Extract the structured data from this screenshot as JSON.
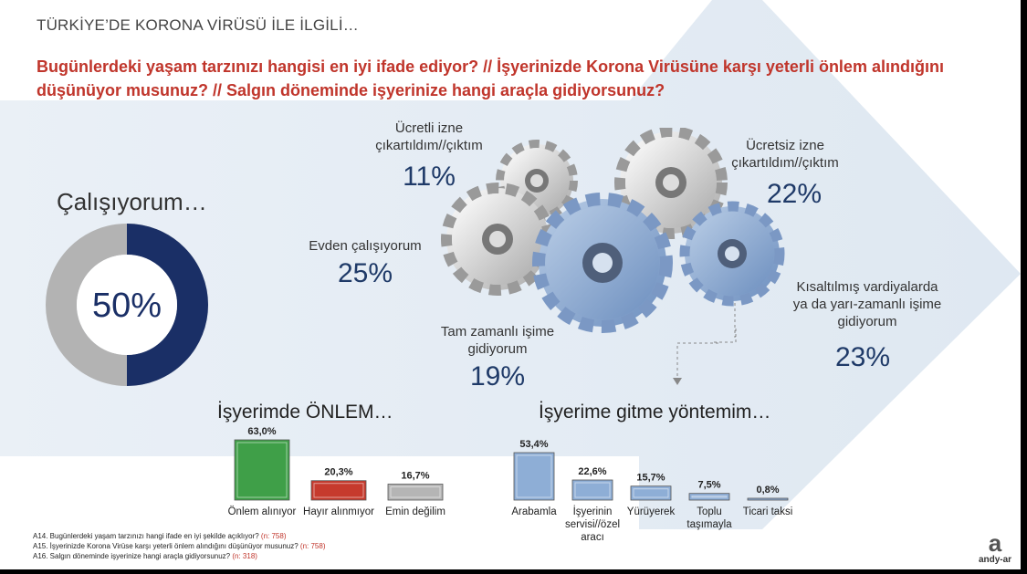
{
  "supertitle": "TÜRKİYE’DE KORONA VİRÜSÜ İLE İLGİLİ…",
  "question": "Bugünlerdeki yaşam tarzınızı hangisi en iyi ifade ediyor? // İşyerinizde Korona Virüsüne karşı yeterli önlem alındığını düşünüyor musunuz? // Salgın döneminde işyerinize hangi araçla gidiyorsunuz?",
  "working": {
    "title": "Çalışıyorum…",
    "value_label": "50%",
    "value": 50,
    "colors": {
      "filled": "#1a2f66",
      "rest": "#b3b3b3"
    }
  },
  "gears": [
    {
      "label_lines": [
        "Ücretli izne",
        "çıkartıldım//çıktım"
      ],
      "pct": "11%"
    },
    {
      "label_lines": [
        "Ücretsiz izne",
        "çıkartıldım//çıktım"
      ],
      "pct": "22%"
    },
    {
      "label_lines": [
        "Evden çalışıyorum"
      ],
      "pct": "25%"
    },
    {
      "label_lines": [
        "Kısaltılmış vardiyalarda",
        "ya da yarı-zamanlı işime",
        "gidiyorum"
      ],
      "pct": "23%"
    },
    {
      "label_lines": [
        "Tam zamanlı işime",
        "gidiyorum"
      ],
      "pct": "19%"
    }
  ],
  "chart_data": [
    {
      "type": "bar",
      "title": "İşyerimde ÖNLEM…",
      "categories": [
        "Önlem alınıyor",
        "Hayır alınmıyor",
        "Emin değilim"
      ],
      "category_lines": [
        [
          "Önlem alınıyor"
        ],
        [
          "Hayır alınmıyor"
        ],
        [
          "Emin değilim"
        ]
      ],
      "values": [
        63.0,
        20.3,
        16.7
      ],
      "value_labels": [
        "63,0%",
        "20,3%",
        "16,7%"
      ],
      "colors": [
        "#3f9f48",
        "#c63a2d",
        "#b5b5b5"
      ],
      "ylim": [
        0,
        63.0
      ]
    },
    {
      "type": "bar",
      "title": "İşyerime gitme yöntemim…",
      "categories": [
        "Arabamla",
        "İşyerinin servisi//özel aracı",
        "Yürüyerek",
        "Toplu taşımayla",
        "Ticari taksi"
      ],
      "category_lines": [
        [
          "Arabamla"
        ],
        [
          "İşyerinin",
          "servisi//özel",
          "aracı"
        ],
        [
          "Yürüyerek"
        ],
        [
          "Toplu",
          "taşımayla"
        ],
        [
          "Ticari taksi"
        ]
      ],
      "values": [
        53.4,
        22.6,
        15.7,
        7.5,
        0.8
      ],
      "value_labels": [
        "53,4%",
        "22,6%",
        "15,7%",
        "7,5%",
        "0,8%"
      ],
      "colors": [
        "#8eaed6",
        "#8eaed6",
        "#8eaed6",
        "#8eaed6",
        "#8eaed6"
      ],
      "ylim": [
        0,
        53.4
      ]
    }
  ],
  "footnotes": [
    {
      "text": "A14. Bugünlerdeki yaşam tarzınızı hangi ifade en iyi şekilde açıklıyor?",
      "n": "(n: 758)"
    },
    {
      "text": "A15. İşyerinizde Korona Virüse karşı yeterli önlem alındığını düşünüyor musunuz?",
      "n": "(n: 758)"
    },
    {
      "text": "A16. Salgın döneminde işyerinize hangi araçla gidiyorsunuz?",
      "n": "(n: 318)"
    }
  ],
  "logo": {
    "mark": "a",
    "text": "andy-ar"
  }
}
